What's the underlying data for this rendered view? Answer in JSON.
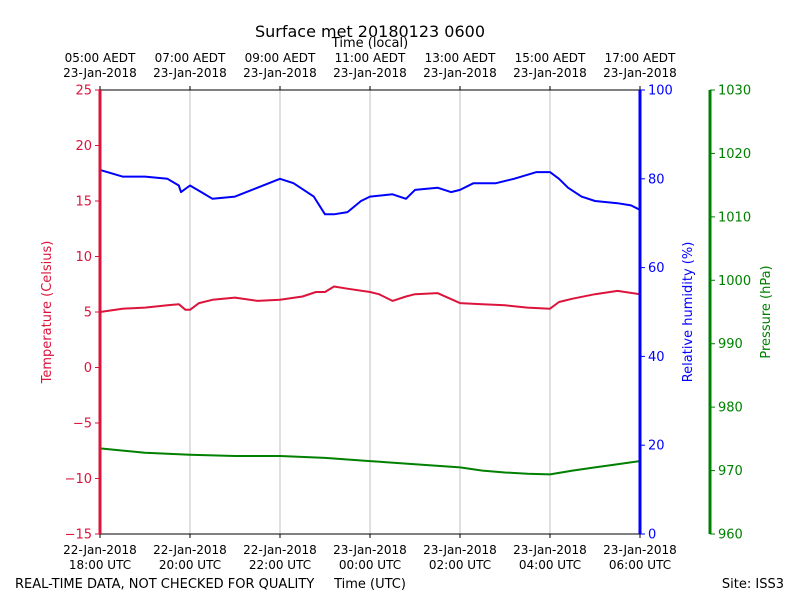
{
  "chart_data": {
    "type": "line",
    "title": "Surface met 20180123 0600",
    "top_axis_label": "Time (local)",
    "xlabel": "Time (UTC)",
    "footer_left": "REAL-TIME DATA, NOT CHECKED FOR QUALITY",
    "footer_right": "Site: ISS3",
    "grid": "vertical",
    "x_ticks_utc": [
      {
        "hour": 0,
        "line1": "22-Jan-2018",
        "line2": "18:00 UTC"
      },
      {
        "hour": 2,
        "line1": "22-Jan-2018",
        "line2": "20:00 UTC"
      },
      {
        "hour": 4,
        "line1": "22-Jan-2018",
        "line2": "22:00 UTC"
      },
      {
        "hour": 6,
        "line1": "23-Jan-2018",
        "line2": "00:00 UTC"
      },
      {
        "hour": 8,
        "line1": "23-Jan-2018",
        "line2": "02:00 UTC"
      },
      {
        "hour": 10,
        "line1": "23-Jan-2018",
        "line2": "04:00 UTC"
      },
      {
        "hour": 12,
        "line1": "23-Jan-2018",
        "line2": "06:00 UTC"
      }
    ],
    "x_ticks_local": [
      {
        "hour": 0,
        "line1": "05:00 AEDT",
        "line2": "23-Jan-2018"
      },
      {
        "hour": 2,
        "line1": "07:00 AEDT",
        "line2": "23-Jan-2018"
      },
      {
        "hour": 4,
        "line1": "09:00 AEDT",
        "line2": "23-Jan-2018"
      },
      {
        "hour": 6,
        "line1": "11:00 AEDT",
        "line2": "23-Jan-2018"
      },
      {
        "hour": 8,
        "line1": "13:00 AEDT",
        "line2": "23-Jan-2018"
      },
      {
        "hour": 10,
        "line1": "15:00 AEDT",
        "line2": "23-Jan-2018"
      },
      {
        "hour": 12,
        "line1": "17:00 AEDT",
        "line2": "23-Jan-2018"
      }
    ],
    "xlim": [
      0,
      12
    ],
    "axes": {
      "temperature": {
        "label": "Temperature (Celsius)",
        "ylim": [
          -15,
          25
        ],
        "ticks": [
          -15,
          -10,
          -5,
          0,
          5,
          10,
          15,
          20,
          25
        ],
        "tick_labels": [
          "−15",
          "−10",
          "−5",
          "0",
          "5",
          "10",
          "15",
          "20",
          "25"
        ],
        "color": "#dc143c"
      },
      "humidity": {
        "label": "Relative humidity (%)",
        "ylim": [
          0,
          100
        ],
        "ticks": [
          0,
          20,
          40,
          60,
          80,
          100
        ],
        "tick_labels": [
          "0",
          "20",
          "40",
          "60",
          "80",
          "100"
        ],
        "color": "#0000ff"
      },
      "pressure": {
        "label": "Pressure (hPa)",
        "ylim": [
          960,
          1030
        ],
        "ticks": [
          960,
          970,
          980,
          990,
          1000,
          1010,
          1020,
          1030
        ],
        "tick_labels": [
          "960",
          "970",
          "980",
          "990",
          "1000",
          "1010",
          "1020",
          "1030"
        ],
        "color": "#008000"
      }
    },
    "series": [
      {
        "name": "Temperature",
        "unit": "Celsius",
        "axis": "temperature",
        "color": "#dc143c",
        "x": [
          0,
          0.5,
          1,
          1.5,
          1.75,
          1.9,
          2,
          2.2,
          2.5,
          3,
          3.5,
          4,
          4.5,
          4.8,
          5,
          5.2,
          5.5,
          6,
          6.2,
          6.5,
          6.8,
          7,
          7.5,
          8,
          8.5,
          9,
          9.5,
          10,
          10.2,
          10.5,
          11,
          11.5,
          12
        ],
        "values": [
          5.0,
          5.3,
          5.4,
          5.6,
          5.7,
          5.2,
          5.2,
          5.8,
          6.1,
          6.3,
          6.0,
          6.1,
          6.4,
          6.8,
          6.8,
          7.3,
          7.1,
          6.8,
          6.6,
          6.0,
          6.4,
          6.6,
          6.7,
          5.8,
          5.7,
          5.6,
          5.4,
          5.3,
          5.9,
          6.2,
          6.6,
          6.9,
          6.6
        ]
      },
      {
        "name": "Relative humidity",
        "unit": "%",
        "axis": "humidity",
        "color": "#0000ff",
        "x": [
          0,
          0.5,
          1,
          1.5,
          1.75,
          1.8,
          2,
          2.25,
          2.5,
          3,
          3.5,
          4,
          4.3,
          4.75,
          5,
          5.2,
          5.5,
          5.8,
          6,
          6.5,
          6.8,
          7,
          7.5,
          7.8,
          8,
          8.3,
          8.8,
          9.2,
          9.7,
          10,
          10.2,
          10.4,
          10.7,
          11,
          11.5,
          11.8,
          12
        ],
        "values": [
          82,
          80.5,
          80.5,
          80,
          78.5,
          77,
          78.5,
          77,
          75.5,
          76,
          78,
          80,
          79,
          76,
          72,
          72,
          72.5,
          75,
          76,
          76.5,
          75.5,
          77.5,
          78,
          77,
          77.5,
          79,
          79,
          80,
          81.5,
          81.5,
          80,
          78,
          76,
          75,
          74.5,
          74,
          73
        ]
      },
      {
        "name": "Pressure",
        "unit": "hPa",
        "axis": "pressure",
        "color": "#008000",
        "x": [
          0,
          1,
          2,
          3,
          4,
          5,
          6,
          7,
          8,
          8.5,
          9,
          9.5,
          10,
          10.5,
          11,
          11.5,
          12
        ],
        "values": [
          973.5,
          972.8,
          972.5,
          972.3,
          972.3,
          972,
          971.5,
          971,
          970.5,
          970,
          969.7,
          969.5,
          969.4,
          970,
          970.5,
          971,
          971.5
        ]
      }
    ]
  }
}
